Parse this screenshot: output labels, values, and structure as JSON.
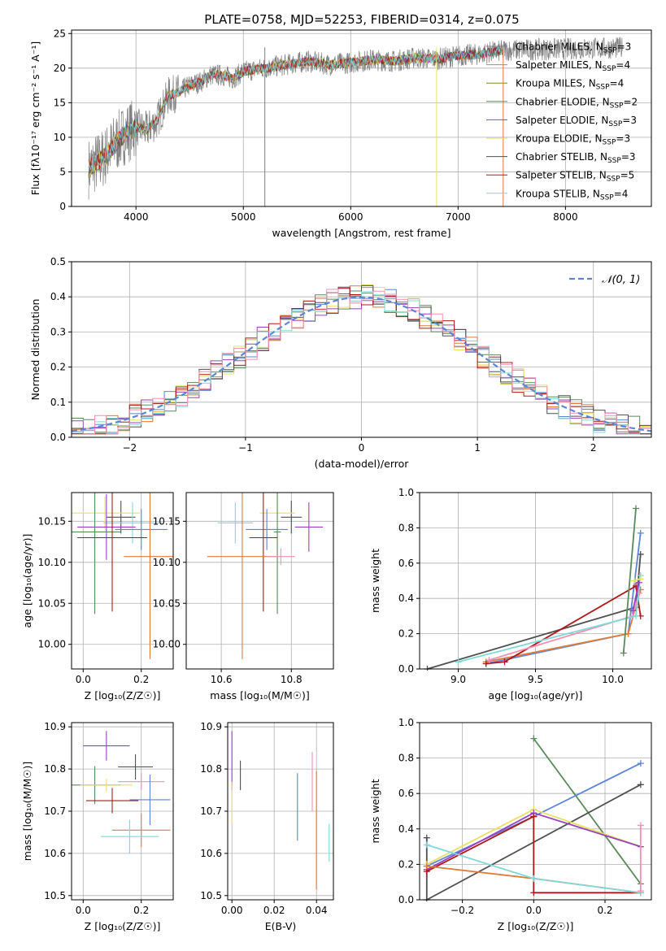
{
  "figure": {
    "title": "PLATE=0758, MJD=52253, FIBERID=0314, z=0.075"
  },
  "series_styles": [
    {
      "name": "Chabrier MILES",
      "n_ssp": "3",
      "color": "#808080"
    },
    {
      "name": "Salpeter MILES",
      "n_ssp": "4",
      "color": "#e07b39"
    },
    {
      "name": "Kroupa MILES",
      "n_ssp": "4",
      "color": "#8a8a1a"
    },
    {
      "name": "Chabrier ELODIE",
      "n_ssp": "2",
      "color": "#5a8a5a"
    },
    {
      "name": "Salpeter ELODIE",
      "n_ssp": "3",
      "color": "#9a3fc0"
    },
    {
      "name": "Kroupa ELODIE",
      "n_ssp": "3",
      "color": "#e8e060"
    },
    {
      "name": "Chabrier STELIB",
      "n_ssp": "3",
      "color": "#505050"
    },
    {
      "name": "Salpeter STELIB",
      "n_ssp": "5",
      "color": "#b01818"
    },
    {
      "name": "Kroupa STELIB",
      "n_ssp": "4",
      "color": "#80d8d8"
    }
  ],
  "chart_data": [
    {
      "id": "spectrum",
      "type": "line",
      "title": "PLATE=0758, MJD=52253, FIBERID=0314, z=0.075",
      "xlabel": "wavelength [Angstrom, rest frame]",
      "ylabel": "Flux [fλ10⁻¹⁷ erg cm⁻² s⁻¹ A⁻¹]",
      "xlim": [
        3400,
        8800
      ],
      "ylim": [
        0,
        25.5
      ],
      "xticks": [
        4000,
        5000,
        6000,
        7000,
        8000
      ],
      "yticks": [
        0,
        5,
        10,
        15,
        20,
        25
      ],
      "legend": "top-right",
      "continuum": {
        "x": [
          3560,
          3600,
          3700,
          3800,
          3900,
          4000,
          4100,
          4200,
          4300,
          4400,
          4500,
          4600,
          4700,
          4800,
          4900,
          5000,
          5200,
          5400,
          5600,
          5800,
          6000,
          6200,
          6400,
          6600,
          6800,
          7000,
          7200,
          7300,
          7420
        ],
        "y": [
          5.5,
          6.0,
          7.0,
          9.0,
          10.5,
          11.5,
          11.0,
          12.5,
          16.0,
          16.5,
          17.5,
          18.0,
          19.0,
          19.0,
          18.5,
          19.5,
          20.0,
          20.5,
          21.0,
          20.5,
          20.8,
          21.2,
          21.0,
          21.5,
          21.3,
          21.8,
          22.0,
          22.3,
          22.5
        ]
      },
      "observed_extends_to": 8530,
      "drop_lines_x": [
        5200,
        6800,
        7420
      ]
    },
    {
      "id": "residuals",
      "type": "histogram",
      "xlabel": "(data-model)/error",
      "ylabel": "Normed distribution",
      "xlim": [
        -2.5,
        2.5
      ],
      "ylim": [
        0,
        0.5
      ],
      "xticks": [
        -2,
        -1,
        0,
        1,
        2
      ],
      "yticks": [
        0.0,
        0.1,
        0.2,
        0.3,
        0.4,
        0.5
      ],
      "reference_label": "𝒩(0, 1)",
      "reference_color": "#5b86d6",
      "legend": "top-right",
      "bin_width": 0.1,
      "bins_per_series": 50
    },
    {
      "id": "z-age",
      "type": "scatter",
      "xlabel": "Z [log₁₀(Z/Z☉)]",
      "ylabel": "age  [log₁₀(age/yr)]",
      "xlim": [
        -0.04,
        0.31
      ],
      "ylim": [
        9.97,
        10.185
      ],
      "xticks": [
        0.0,
        0.2
      ],
      "yticks": [
        10.0,
        10.05,
        10.1,
        10.15
      ],
      "points": [
        {
          "x": 0.13,
          "y": 10.155,
          "xerr": 0.05,
          "yerr": 0.02,
          "color": "#505050"
        },
        {
          "x": 0.075,
          "y": 10.16,
          "xerr": 0.12,
          "yerr": 0.02,
          "color": "#e8e060"
        },
        {
          "x": 0.17,
          "y": 10.148,
          "xerr": 0.1,
          "yerr": 0.025,
          "color": "#80d8d8"
        },
        {
          "x": 0.08,
          "y": 10.143,
          "xerr": 0.1,
          "yerr": 0.04,
          "color": "#9a3fc0"
        },
        {
          "x": 0.2,
          "y": 10.14,
          "xerr": 0.09,
          "yerr": 0.025,
          "color": "#5b86d6"
        },
        {
          "x": 0.04,
          "y": 10.137,
          "xerr": 0.09,
          "yerr": 0.1,
          "color": "#5a8a5a"
        },
        {
          "x": 0.1,
          "y": 10.13,
          "xerr": 0.12,
          "yerr": 0.09,
          "color": "#b01818"
        },
        {
          "x": 0.23,
          "y": 10.107,
          "xerr": 0.09,
          "yerr": 0.125,
          "color": "#e07b39"
        }
      ]
    },
    {
      "id": "mass-age",
      "type": "scatter",
      "xlabel": "mass [log₁₀(M/M☉)]",
      "ylabel": "",
      "xlim": [
        10.5,
        10.92
      ],
      "ylim": [
        9.97,
        10.185
      ],
      "xticks": [
        10.6,
        10.8
      ],
      "yticks": [
        10.0,
        10.05,
        10.1,
        10.15
      ],
      "points": [
        {
          "x": 10.8,
          "y": 10.155,
          "xerr": 0.03,
          "yerr": 0.02,
          "color": "#505050"
        },
        {
          "x": 10.76,
          "y": 10.16,
          "xerr": 0.05,
          "yerr": 0.02,
          "color": "#e8e060"
        },
        {
          "x": 10.64,
          "y": 10.148,
          "xerr": 0.05,
          "yerr": 0.025,
          "color": "#80d8d8"
        },
        {
          "x": 10.85,
          "y": 10.143,
          "xerr": 0.04,
          "yerr": 0.03,
          "color": "#9a3fc0"
        },
        {
          "x": 10.73,
          "y": 10.14,
          "xerr": 0.06,
          "yerr": 0.025,
          "color": "#5b86d6"
        },
        {
          "x": 10.76,
          "y": 10.137,
          "xerr": 0.01,
          "yerr": 0.1,
          "color": "#5a8a5a"
        },
        {
          "x": 10.72,
          "y": 10.13,
          "xerr": 0.04,
          "yerr": 0.09,
          "color": "#b01818"
        },
        {
          "x": 10.66,
          "y": 10.107,
          "xerr": 0.1,
          "yerr": 0.125,
          "color": "#e07b39"
        },
        {
          "x": 10.77,
          "y": 10.107,
          "xerr": 0.04,
          "yerr": 0.01,
          "color": "#f48fb1"
        }
      ]
    },
    {
      "id": "age-weight",
      "type": "line",
      "xlabel": "age  [log₁₀(age/yr)]",
      "ylabel": "mass weight",
      "xlim": [
        8.75,
        10.25
      ],
      "ylim": [
        0,
        1.0
      ],
      "xticks": [
        9.0,
        9.5,
        10.0
      ],
      "yticks": [
        0.0,
        0.2,
        0.4,
        0.6,
        0.8,
        1.0
      ],
      "series": [
        {
          "color": "#505050",
          "x": [
            8.8,
            10.15,
            10.18
          ],
          "y": [
            0.0,
            0.35,
            0.65
          ]
        },
        {
          "color": "#5b86d6",
          "x": [
            9.18,
            10.1,
            10.18
          ],
          "y": [
            0.03,
            0.2,
            0.77
          ]
        },
        {
          "color": "#e07b39",
          "x": [
            9.18,
            10.1,
            10.18
          ],
          "y": [
            0.04,
            0.2,
            0.45
          ]
        },
        {
          "color": "#b01818",
          "x": [
            9.18,
            9.3,
            10.15,
            10.18
          ],
          "y": [
            0.03,
            0.04,
            0.47,
            0.3
          ]
        },
        {
          "color": "#f48fb1",
          "x": [
            9.2,
            10.13,
            10.17
          ],
          "y": [
            0.05,
            0.3,
            0.43
          ]
        },
        {
          "color": "#80d8d8",
          "x": [
            9.0,
            10.15,
            10.18
          ],
          "y": [
            0.04,
            0.3,
            0.53
          ]
        },
        {
          "color": "#9a3fc0",
          "x": [
            10.13,
            10.17
          ],
          "y": [
            0.33,
            0.49
          ]
        },
        {
          "color": "#5a8a5a",
          "x": [
            10.07,
            10.15
          ],
          "y": [
            0.09,
            0.91
          ]
        },
        {
          "color": "#e8e060",
          "x": [
            10.14,
            10.18
          ],
          "y": [
            0.5,
            0.51
          ]
        }
      ]
    },
    {
      "id": "z-mass",
      "type": "scatter",
      "xlabel": "Z [log₁₀(Z/Z☉)]",
      "ylabel": "mass [log₁₀(M/M☉)]",
      "xlim": [
        -0.04,
        0.31
      ],
      "ylim": [
        10.49,
        10.91
      ],
      "xticks": [
        0.0,
        0.2
      ],
      "yticks": [
        10.5,
        10.6,
        10.7,
        10.8,
        10.9
      ],
      "points": [
        {
          "x": 0.08,
          "y": 10.855,
          "xerr": 0.08,
          "yerr": 0.035,
          "color": "#9a3fc0"
        },
        {
          "x": 0.18,
          "y": 10.805,
          "xerr": 0.06,
          "yerr": 0.03,
          "color": "#505050"
        },
        {
          "x": 0.04,
          "y": 10.762,
          "xerr": 0.09,
          "yerr": 0.045,
          "color": "#5a8a5a"
        },
        {
          "x": 0.08,
          "y": 10.762,
          "xerr": 0.09,
          "yerr": 0.015,
          "color": "#e8e060"
        },
        {
          "x": 0.2,
          "y": 10.77,
          "xerr": 0.08,
          "yerr": 0.02,
          "color": "#f48fb1"
        },
        {
          "x": 0.1,
          "y": 10.725,
          "xerr": 0.09,
          "yerr": 0.03,
          "color": "#b01818"
        },
        {
          "x": 0.23,
          "y": 10.727,
          "xerr": 0.07,
          "yerr": 0.06,
          "color": "#5b86d6"
        },
        {
          "x": 0.2,
          "y": 10.655,
          "xerr": 0.1,
          "yerr": 0.04,
          "color": "#e07b39"
        },
        {
          "x": 0.16,
          "y": 10.64,
          "xerr": 0.1,
          "yerr": 0.04,
          "color": "#80d8d8"
        }
      ]
    },
    {
      "id": "ebv-mass",
      "type": "scatter",
      "xlabel": "E(B-V)",
      "ylabel": "",
      "xlim": [
        -0.002,
        0.048
      ],
      "ylim": [
        10.49,
        10.91
      ],
      "xticks": [
        0.0,
        0.02,
        0.04
      ],
      "yticks": [
        10.5,
        10.6,
        10.7,
        10.8,
        10.9
      ],
      "points": [
        {
          "x": 0.0,
          "y": 10.82,
          "yerr": 0.07,
          "color": "#9a3fc0"
        },
        {
          "x": 0.0,
          "y": 10.72,
          "yerr": 0.05,
          "color": "#e8e060"
        },
        {
          "x": 0.004,
          "y": 10.785,
          "yerr": 0.035,
          "color": "#505050"
        },
        {
          "x": 0.031,
          "y": 10.71,
          "yerr": 0.08,
          "color": "#5b86d6"
        },
        {
          "x": 0.038,
          "y": 10.77,
          "yerr": 0.07,
          "color": "#f48fb1"
        },
        {
          "x": 0.04,
          "y": 10.655,
          "yerr": 0.14,
          "color": "#e07b39"
        },
        {
          "x": 0.046,
          "y": 10.625,
          "yerr": 0.045,
          "color": "#80d8d8"
        }
      ]
    },
    {
      "id": "z-weight",
      "type": "line",
      "xlabel": "Z [log₁₀(Z/Z☉)]",
      "ylabel": "mass weight",
      "xlim": [
        -0.32,
        0.33
      ],
      "ylim": [
        0,
        1.0
      ],
      "xticks": [
        -0.2,
        0.0,
        0.2
      ],
      "yticks": [
        0.0,
        0.2,
        0.4,
        0.6,
        0.8,
        1.0
      ],
      "series": [
        {
          "color": "#5a8a5a",
          "x": [
            0.0,
            0.3
          ],
          "y": [
            0.91,
            0.09
          ]
        },
        {
          "color": "#5b86d6",
          "x": [
            -0.3,
            0.0,
            0.3
          ],
          "y": [
            0.19,
            0.47,
            0.77
          ]
        },
        {
          "color": "#505050",
          "x": [
            -0.3,
            -0.3,
            0.3
          ],
          "y": [
            0.35,
            0.0,
            0.65
          ]
        },
        {
          "color": "#e8e060",
          "x": [
            -0.3,
            0.0,
            0.3
          ],
          "y": [
            0.2,
            0.51,
            0.3
          ]
        },
        {
          "color": "#9a3fc0",
          "x": [
            -0.3,
            0.0,
            0.3
          ],
          "y": [
            0.17,
            0.49,
            0.3
          ]
        },
        {
          "color": "#b01818",
          "x": [
            -0.3,
            0.0,
            0.0,
            0.3
          ],
          "y": [
            0.16,
            0.47,
            0.04,
            0.04
          ]
        },
        {
          "color": "#e07b39",
          "x": [
            -0.3,
            0.0,
            0.3
          ],
          "y": [
            0.19,
            0.12,
            0.04
          ]
        },
        {
          "color": "#80d8d8",
          "x": [
            -0.3,
            0.0,
            0.3
          ],
          "y": [
            0.31,
            0.12,
            0.04
          ]
        },
        {
          "color": "#f48fb1",
          "x": [
            0.3,
            0.3
          ],
          "y": [
            0.42,
            0.05
          ]
        }
      ]
    }
  ]
}
